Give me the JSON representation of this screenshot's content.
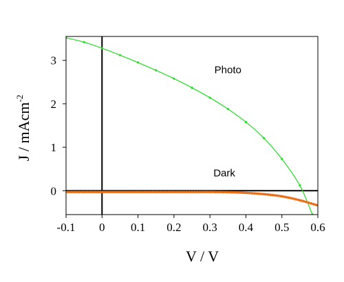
{
  "chart_data": {
    "type": "line",
    "title": "",
    "xlabel": "V / V",
    "ylabel_main": "J / mAcm",
    "ylabel_sup": "-2",
    "xlim": [
      -0.1,
      0.6
    ],
    "ylim": [
      -0.55,
      3.55
    ],
    "xticks": [
      -0.1,
      0,
      0.1,
      0.2,
      0.3,
      0.4,
      0.5,
      0.6
    ],
    "xtick_labels": [
      "-0.1",
      "0",
      "0.1",
      "0.2",
      "0.3",
      "0.4",
      "0.5",
      "0.6"
    ],
    "yticks": [
      0,
      1,
      2,
      3
    ],
    "ytick_labels": [
      "0",
      "1",
      "2",
      "3"
    ],
    "grid": false,
    "reference_lines": [
      {
        "axis": "x",
        "value": 0
      },
      {
        "axis": "y",
        "value": 0
      }
    ],
    "annotations": [
      {
        "text": "Photo",
        "x": 0.35,
        "y": 2.7
      },
      {
        "text": "Dark",
        "x": 0.34,
        "y": 0.33
      }
    ],
    "series": [
      {
        "color": "#22dd22",
        "x": [
          -0.1,
          -0.05,
          0.0,
          0.05,
          0.1,
          0.15,
          0.2,
          0.25,
          0.3,
          0.35,
          0.4,
          0.45,
          0.5,
          0.55,
          0.585
        ],
        "y": [
          3.52,
          3.42,
          3.28,
          3.12,
          2.95,
          2.77,
          2.58,
          2.37,
          2.14,
          1.88,
          1.58,
          1.21,
          0.73,
          0.12,
          -0.55
        ]
      },
      {
        "color": "#e8701a",
        "x": [
          -0.1,
          -0.05,
          0.0,
          0.05,
          0.1,
          0.15,
          0.2,
          0.25,
          0.3,
          0.35,
          0.4,
          0.45,
          0.5,
          0.55,
          0.6
        ],
        "y": [
          -0.03,
          -0.03,
          -0.03,
          -0.03,
          -0.03,
          -0.03,
          -0.03,
          -0.03,
          -0.03,
          -0.035,
          -0.05,
          -0.08,
          -0.13,
          -0.22,
          -0.34
        ]
      }
    ]
  }
}
